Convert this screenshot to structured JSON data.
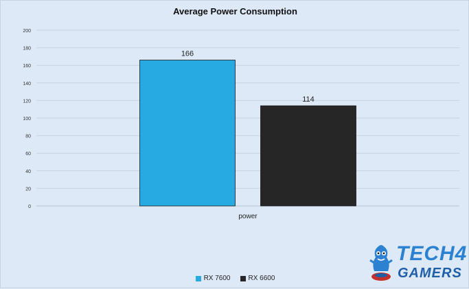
{
  "chart_data": {
    "type": "bar",
    "title": "Average Power Consumption",
    "categories": [
      "power"
    ],
    "series": [
      {
        "name": "RX 7600",
        "values": [
          166
        ],
        "color": "#27aae1"
      },
      {
        "name": "RX 6600",
        "values": [
          114
        ],
        "color": "#262626"
      }
    ],
    "ylim": [
      0,
      200
    ],
    "yticks": [
      0,
      20,
      40,
      60,
      80,
      100,
      120,
      140,
      160,
      180,
      200
    ],
    "grid": true,
    "legend_position": "bottom"
  },
  "logo": {
    "line1": "TECH4",
    "line2": "GAMERS",
    "icon": "mascot-logo-icon"
  }
}
